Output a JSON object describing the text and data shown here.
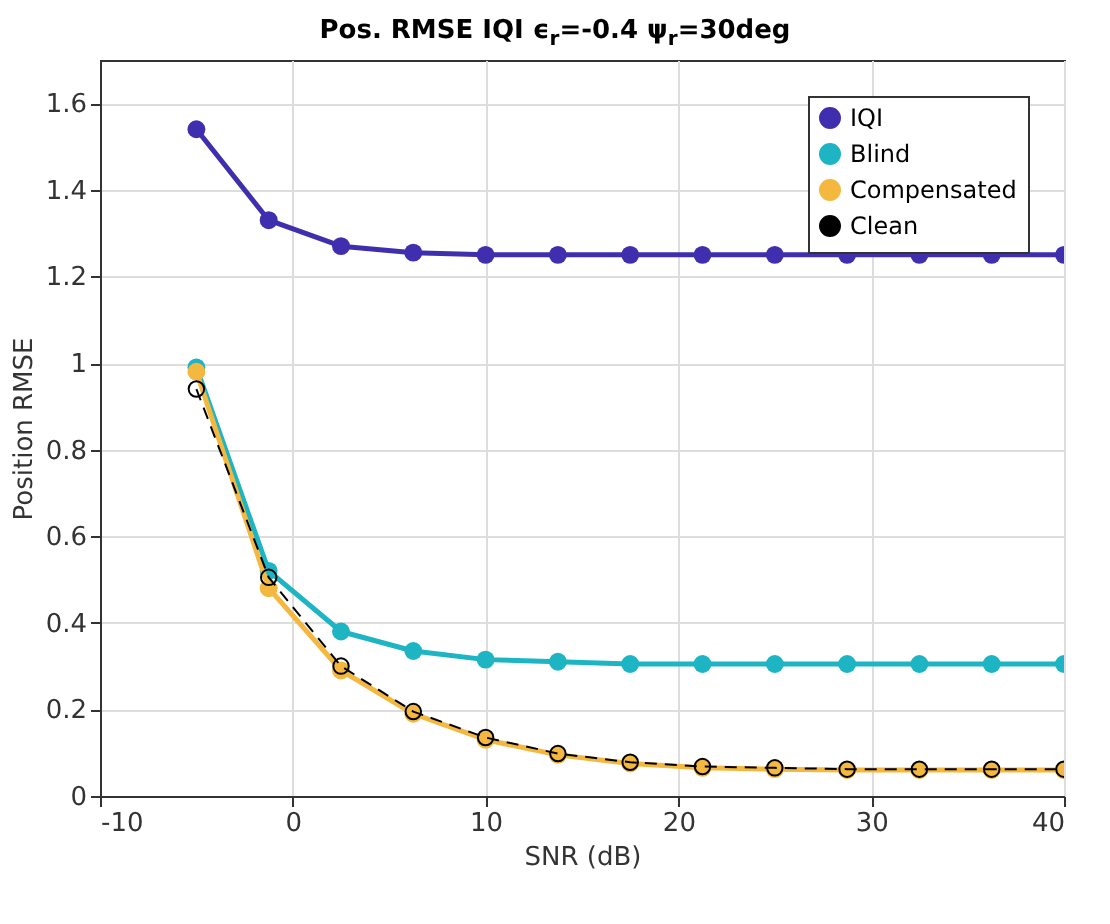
{
  "chart_data": {
    "type": "line",
    "title": "Pos. RMSE IQI ϵ$_{r}$=-0.4 ψ$_{r}$=30deg",
    "xlabel": "SNR (dB)",
    "ylabel": "Position RMSE",
    "x": [
      -5,
      -1.25,
      2.5,
      6.25,
      10,
      13.75,
      17.5,
      21.25,
      25,
      28.75,
      32.5,
      36.25,
      40
    ],
    "series": [
      {
        "name": "IQI",
        "color": "#3f2fae",
        "marker": "circle",
        "line_style": "solid",
        "values": [
          1.54,
          1.33,
          1.27,
          1.255,
          1.25,
          1.25,
          1.25,
          1.25,
          1.25,
          1.25,
          1.25,
          1.25,
          1.25
        ]
      },
      {
        "name": "Blind",
        "color": "#1db4c4",
        "marker": "circle",
        "line_style": "solid",
        "values": [
          0.99,
          0.52,
          0.38,
          0.335,
          0.315,
          0.31,
          0.305,
          0.305,
          0.305,
          0.305,
          0.305,
          0.305,
          0.305
        ]
      },
      {
        "name": "Compensated",
        "color": "#f4b73f",
        "marker": "circle",
        "line_style": "solid",
        "values": [
          0.98,
          0.48,
          0.29,
          0.19,
          0.13,
          0.095,
          0.075,
          0.065,
          0.062,
          0.06,
          0.06,
          0.06,
          0.06
        ]
      },
      {
        "name": "Clean",
        "color": "#000000",
        "marker": "circle",
        "line_style": "dashed",
        "values": [
          0.94,
          0.505,
          0.3,
          0.195,
          0.135,
          0.098,
          0.078,
          0.068,
          0.065,
          0.062,
          0.062,
          0.062,
          0.062
        ]
      }
    ],
    "xlim": [
      -10,
      40
    ],
    "xticks": [
      -10,
      0,
      10,
      20,
      30,
      40
    ],
    "ylim": [
      0,
      1.7
    ],
    "yticks": [
      0,
      0.2,
      0.4,
      0.6,
      0.8,
      1,
      1.2,
      1.4,
      1.6
    ],
    "grid": true,
    "legend": "top right"
  }
}
